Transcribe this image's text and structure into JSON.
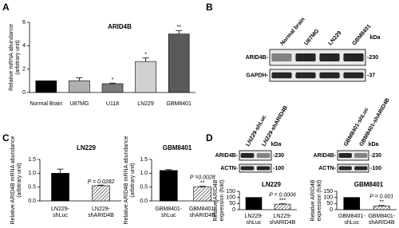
{
  "panel_labels": [
    "A",
    "B",
    "C",
    "D"
  ],
  "chart_data": [
    {
      "type": "bar",
      "title": "ARID4B",
      "y_label": [
        "Relative mRNA abundance",
        "(arbitrary unit)"
      ],
      "categories": [
        "Normal Brain",
        "U87MG",
        "U118",
        "LN229",
        "GBM8401"
      ],
      "values": [
        1,
        1,
        0.75,
        2.65,
        5
      ],
      "errors": [
        null,
        0.25,
        0.05,
        0.3,
        0.3
      ],
      "colors": [
        "#000000",
        "#b0b0b0",
        "#7a7a7a",
        "#d0d0d0",
        "#5a5a5a"
      ],
      "fills": [
        "solid",
        "solid",
        "solid",
        "solid",
        "solid"
      ],
      "annotations": [
        null,
        null,
        [
          "*"
        ],
        [
          "*"
        ],
        [
          "**"
        ]
      ],
      "ylim": [
        0,
        6
      ],
      "yticks": [
        0,
        2,
        4,
        6
      ]
    },
    {
      "type": "bar",
      "title": "LN229",
      "y_label": [
        "Relative ARID4B mRNA abundance",
        "(arbitrary unit)"
      ],
      "categories": [
        "LN229-shLuc",
        "LN229-shARID4B"
      ],
      "values": [
        1.0,
        0.55
      ],
      "errors": [
        0.15,
        0.02
      ],
      "colors": [
        "#000000",
        "#000000"
      ],
      "fills": [
        "solid",
        "hatched"
      ],
      "annotations": [
        null,
        [
          "P = 0.0282"
        ]
      ],
      "ylim": [
        0,
        1.5
      ],
      "yticks": [
        {
          "value": 0,
          "label": "0.0"
        },
        {
          "value": 0.5,
          "label": "0.5"
        },
        {
          "value": 1,
          "label": "1.0"
        },
        {
          "value": 1.5,
          "label": "1.5"
        }
      ]
    },
    {
      "type": "bar",
      "title": "GBM8401",
      "y_label": [
        "Relative ARID4B mRNA abundance",
        "(arbitrary unit)"
      ],
      "categories": [
        "GBM8401-shLuc",
        "GBM8401-shARID4B"
      ],
      "values": [
        1.1,
        0.5
      ],
      "errors": [
        0.03,
        0.03
      ],
      "colors": [
        "#000000",
        "#000000"
      ],
      "fills": [
        "solid",
        "hatched"
      ],
      "annotations": [
        null,
        [
          "P =0.0028",
          "**"
        ]
      ],
      "ylim": [
        0,
        1.5
      ],
      "yticks": [
        {
          "value": 0,
          "label": "0.0"
        },
        {
          "value": 0.5,
          "label": "0.5"
        },
        {
          "value": 1,
          "label": "1.0"
        },
        {
          "value": 1.5,
          "label": "1.5"
        }
      ]
    },
    {
      "type": "bar",
      "title": "LN229",
      "y_label": [
        "Relative ARID4B",
        "expression (fold)"
      ],
      "categories": [
        "LN229-shLuc",
        "LN229-shARID4B"
      ],
      "values": [
        100,
        45
      ],
      "errors": [
        null,
        3
      ],
      "colors": [
        "#000000",
        "#000000"
      ],
      "fills": [
        "solid",
        "hatched"
      ],
      "annotations": [
        null,
        [
          "P = 0.0006",
          "***"
        ]
      ],
      "ylim": [
        0,
        150
      ],
      "yticks": [
        0,
        50,
        100,
        150
      ]
    },
    {
      "type": "bar",
      "title": "GBM8401",
      "y_label": [
        "Relative ARID4B",
        "expression (fold)"
      ],
      "categories": [
        "GBM8401-shLuc",
        "GBM8401-shARID4B"
      ],
      "values": [
        100,
        30
      ],
      "errors": [
        null,
        4
      ],
      "colors": [
        "#000000",
        "#000000"
      ],
      "fills": [
        "solid",
        "hatched"
      ],
      "annotations": [
        null,
        [
          "P = 0.001",
          "**"
        ]
      ],
      "ylim": [
        0,
        150
      ],
      "yticks": [
        0,
        50,
        100,
        150
      ]
    }
  ],
  "blots": [
    {
      "lanes": [
        "Normal brain",
        "U87MG",
        "LN229",
        "GBM8401"
      ],
      "unit": "kDa",
      "rows": [
        {
          "label": "ARID4B-",
          "marker": "-230"
        },
        {
          "label": "GAPDH-",
          "marker": "-37"
        }
      ]
    },
    {
      "lanes": [
        "LN229-shLuc",
        "LN229-shARID4B"
      ],
      "unit": "kDa",
      "rows": [
        {
          "label": "ARID4B-",
          "marker": "-230"
        },
        {
          "label": "ACTN-",
          "marker": "-100"
        }
      ]
    },
    {
      "lanes": [
        "GBM8401-shLuc",
        "GBM8401-shARID4B"
      ],
      "unit": "kDa",
      "rows": [
        {
          "label": "ARID4B-",
          "marker": "-230"
        },
        {
          "label": "ACTN-",
          "marker": "-100"
        }
      ]
    }
  ]
}
